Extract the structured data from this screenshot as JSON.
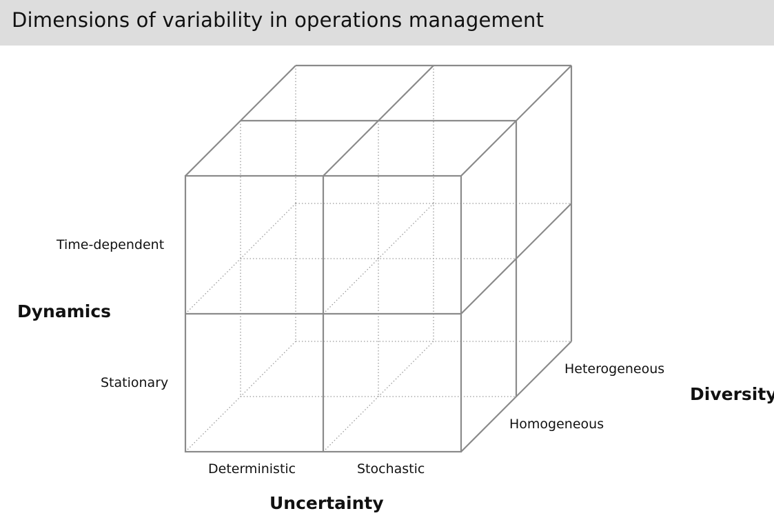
{
  "title": "Dimensions of variability in operations management",
  "axes": {
    "dynamics": {
      "label": "Dynamics",
      "levels": [
        "Time-dependent",
        "Stationary"
      ]
    },
    "uncertainty": {
      "label": "Uncertainty",
      "levels": [
        "Deterministic",
        "Stochastic"
      ]
    },
    "diversity": {
      "label": "Diversity",
      "levels": [
        "Heterogeneous",
        "Homogeneous"
      ]
    }
  },
  "colors": {
    "title_bar": "#dddddd",
    "cube_lines": "#8a8a8a"
  }
}
